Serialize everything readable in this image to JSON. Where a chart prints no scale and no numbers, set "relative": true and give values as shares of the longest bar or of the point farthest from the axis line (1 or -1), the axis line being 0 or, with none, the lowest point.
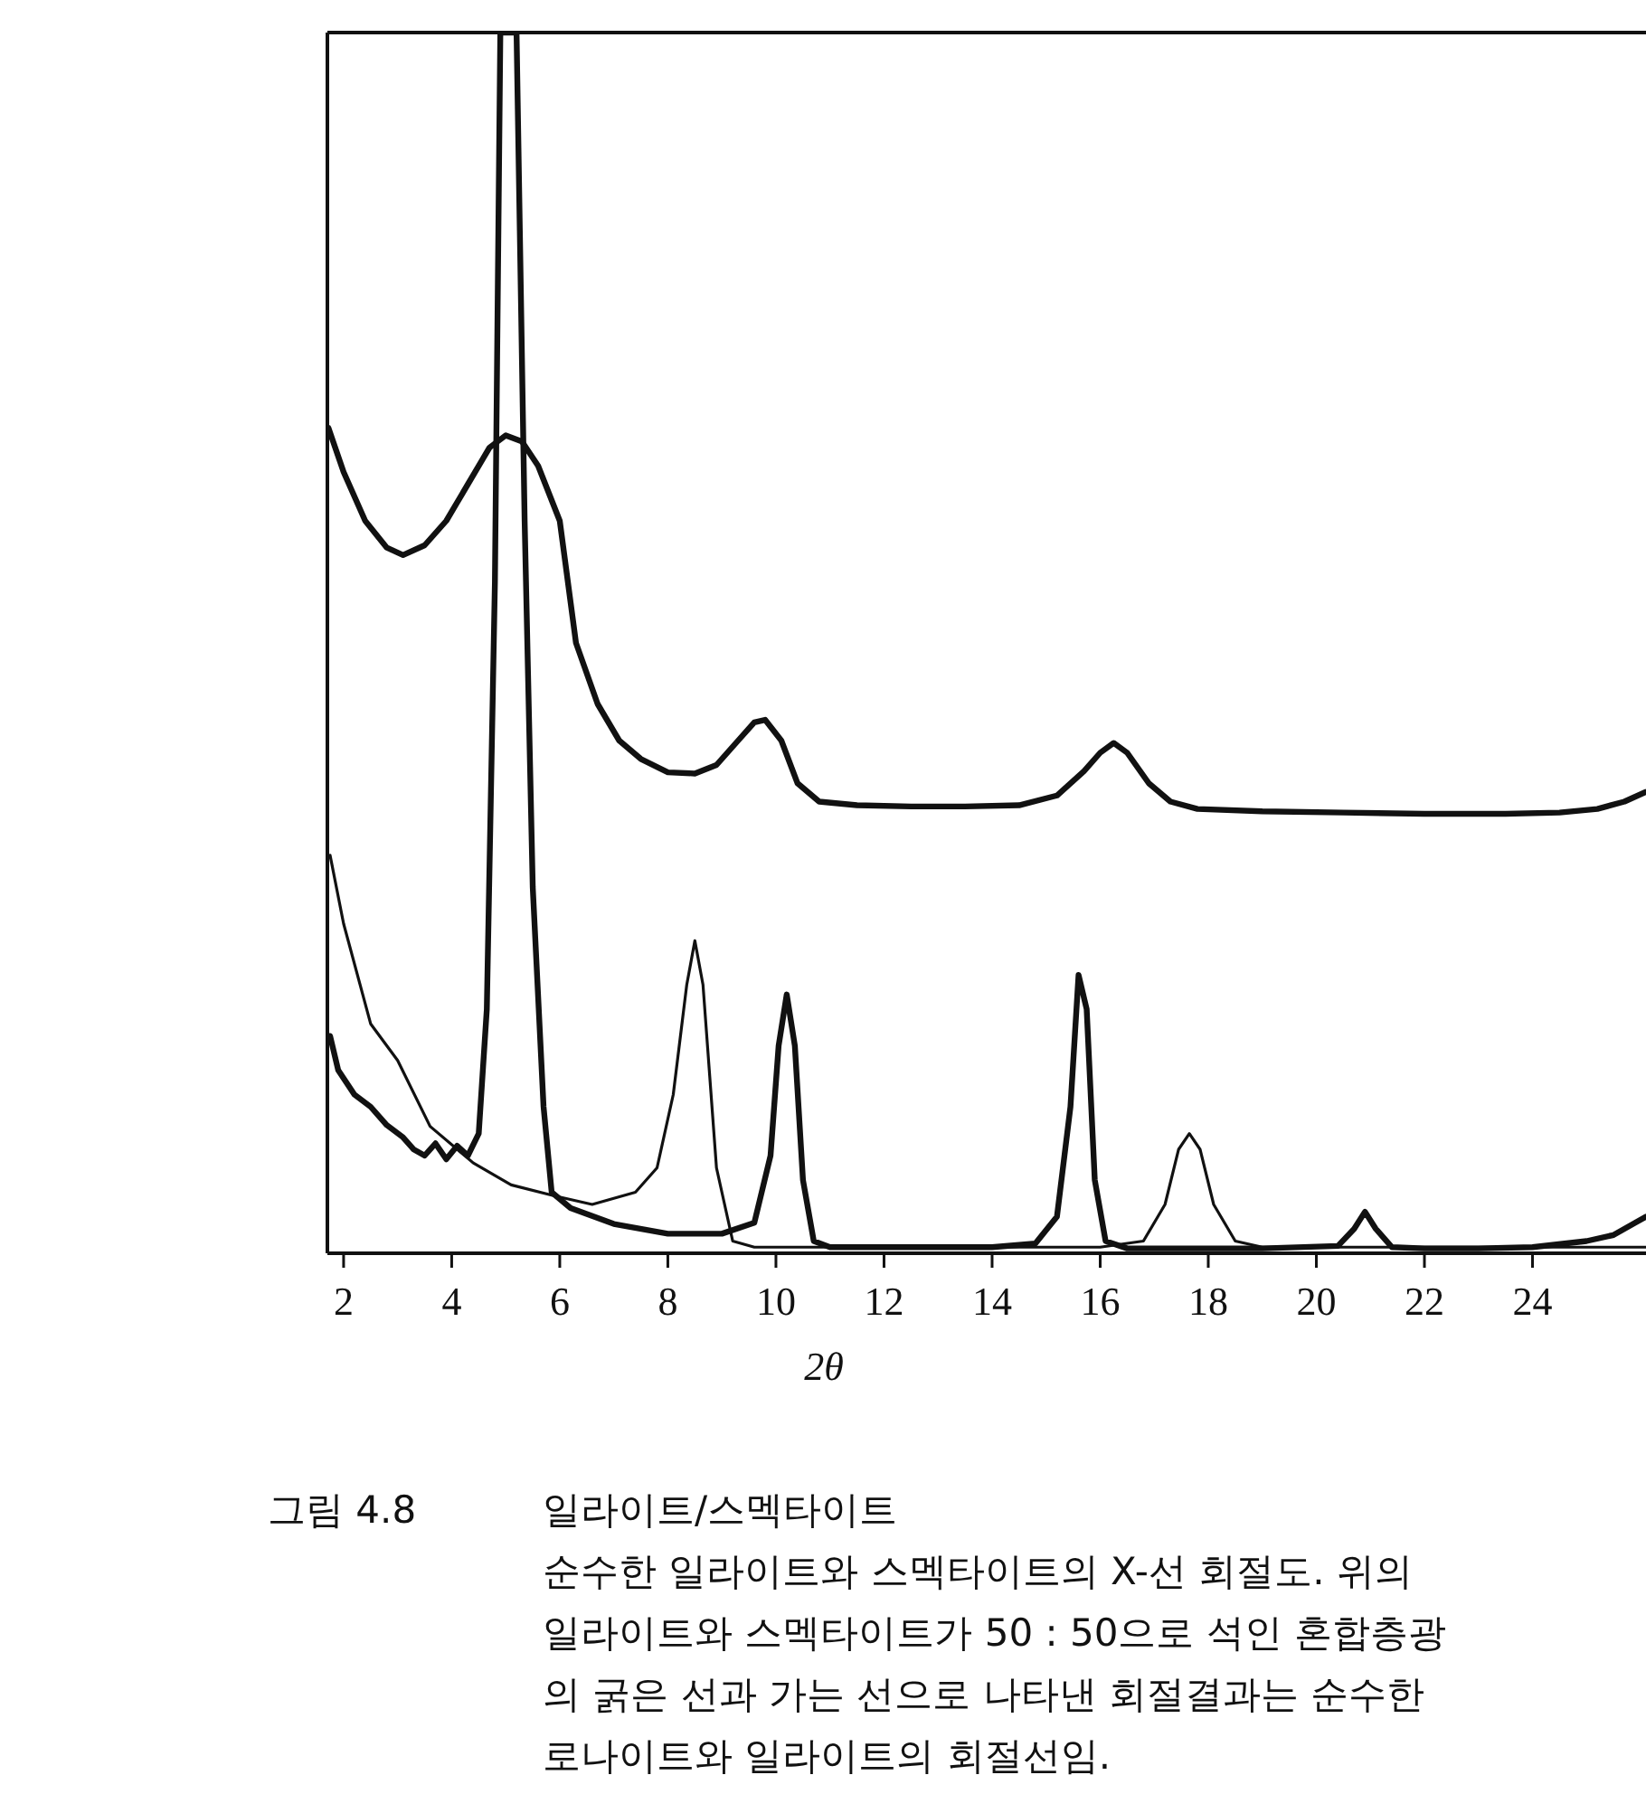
{
  "chart_data": {
    "type": "line",
    "relative": true,
    "xlabel": "2θ",
    "xlim": [
      1.7,
      26.1
    ],
    "xticks": [
      2,
      4,
      6,
      8,
      10,
      12,
      14,
      16,
      18,
      20,
      22,
      24
    ],
    "tick_labels": "x",
    "grid": false,
    "line_style": "solid",
    "series": [
      {
        "color": "#111111",
        "x": [
          1.72,
          2.0,
          2.4,
          2.8,
          3.1,
          3.5,
          3.9,
          4.3,
          4.7,
          5.0,
          5.3,
          5.6,
          6.0,
          6.3,
          6.7,
          7.1,
          7.5,
          8.0,
          8.5,
          8.9,
          9.3,
          9.6,
          9.8,
          10.1,
          10.4,
          10.8,
          11.5,
          12.5,
          13.5,
          14.5,
          15.2,
          15.7,
          16.0,
          16.25,
          16.5,
          16.9,
          17.3,
          17.8,
          19,
          20.5,
          22,
          23.5,
          24.5,
          25.2,
          25.7,
          26.1
        ],
        "values": [
          0.676,
          0.64,
          0.6,
          0.578,
          0.572,
          0.58,
          0.6,
          0.63,
          0.66,
          0.67,
          0.665,
          0.645,
          0.6,
          0.5,
          0.45,
          0.42,
          0.405,
          0.394,
          0.393,
          0.4,
          0.42,
          0.435,
          0.437,
          0.42,
          0.385,
          0.37,
          0.367,
          0.366,
          0.366,
          0.367,
          0.375,
          0.395,
          0.41,
          0.418,
          0.41,
          0.385,
          0.37,
          0.364,
          0.362,
          0.361,
          0.36,
          0.36,
          0.361,
          0.364,
          0.37,
          0.378
        ]
      },
      {
        "color": "#111111",
        "x": [
          1.75,
          1.9,
          2.2,
          2.5,
          2.8,
          3.1,
          3.3,
          3.5,
          3.7,
          3.9,
          4.1,
          4.3,
          4.5,
          4.65,
          4.8,
          4.9,
          5.05,
          5.2,
          5.35,
          5.5,
          5.7,
          5.85,
          6.2,
          7.0,
          8.0,
          9.0,
          9.6,
          9.9,
          10.05,
          10.2,
          10.35,
          10.5,
          10.7,
          11.0,
          12,
          13,
          14,
          14.8,
          15.2,
          15.45,
          15.6,
          15.75,
          15.9,
          16.1,
          16.5,
          17.5,
          19,
          20.4,
          20.7,
          20.9,
          21.1,
          21.4,
          22,
          23,
          24,
          25,
          25.5,
          25.9,
          26.1
        ],
        "values": [
          0.178,
          0.15,
          0.13,
          0.12,
          0.105,
          0.095,
          0.085,
          0.08,
          0.09,
          0.077,
          0.088,
          0.08,
          0.098,
          0.2,
          0.55,
          1.0,
          1.0,
          1.0,
          0.6,
          0.3,
          0.12,
          0.05,
          0.037,
          0.024,
          0.016,
          0.016,
          0.025,
          0.08,
          0.17,
          0.212,
          0.17,
          0.06,
          0.01,
          0.005,
          0.005,
          0.005,
          0.005,
          0.008,
          0.03,
          0.12,
          0.228,
          0.2,
          0.06,
          0.01,
          0.004,
          0.004,
          0.004,
          0.006,
          0.02,
          0.034,
          0.02,
          0.005,
          0.004,
          0.004,
          0.005,
          0.01,
          0.015,
          0.025,
          0.03
        ]
      },
      {
        "color": "#111111",
        "x": [
          1.75,
          2.0,
          2.5,
          3.0,
          3.6,
          4.4,
          5.1,
          5.9,
          6.6,
          7.4,
          7.8,
          8.1,
          8.35,
          8.5,
          8.65,
          8.9,
          9.2,
          9.6,
          10.5,
          12,
          14,
          16,
          16.8,
          17.2,
          17.45,
          17.65,
          17.85,
          18.1,
          18.5,
          19,
          21,
          23,
          25,
          26.1
        ],
        "values": [
          0.326,
          0.27,
          0.188,
          0.158,
          0.104,
          0.074,
          0.056,
          0.047,
          0.04,
          0.05,
          0.07,
          0.13,
          0.22,
          0.256,
          0.22,
          0.07,
          0.01,
          0.005,
          0.005,
          0.005,
          0.005,
          0.005,
          0.01,
          0.04,
          0.085,
          0.098,
          0.085,
          0.04,
          0.01,
          0.005,
          0.005,
          0.005,
          0.005,
          0.005
        ]
      }
    ],
    "annotations": [
      "그림 4.8",
      "일라이트/스멕타이트",
      "순수한 일라이트와 스멕타이트의 X-선 회절도. 위의",
      "일라이트와 스멕타이트가 50 : 50으로 석인 혼합층광",
      "의 굵은 선과 가는 선으로 나타낸 회절결과는 순수한",
      "로나이트와 일라이트의 회절선임."
    ]
  }
}
